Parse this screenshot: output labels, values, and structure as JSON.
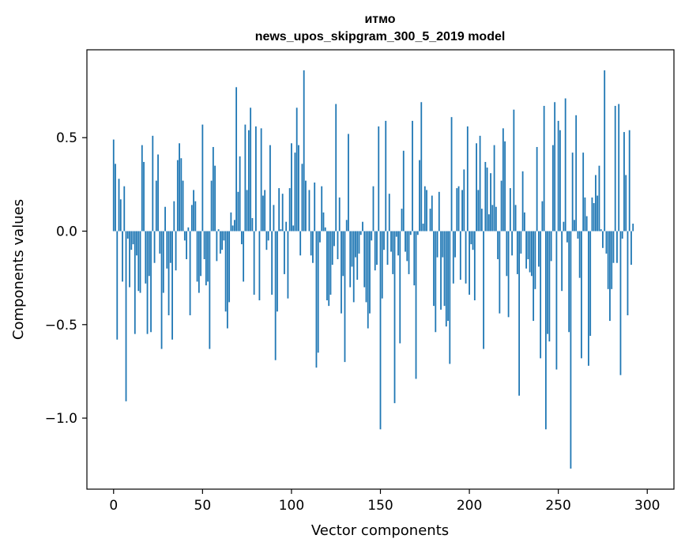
{
  "chart_data": {
    "type": "bar",
    "title": "итмо",
    "subtitle": "news_upos_skipgram_300_5_2019 model",
    "xlabel": "Vector components",
    "ylabel": "Components values",
    "xlim": [
      -15,
      315
    ],
    "ylim": [
      -1.38,
      0.97
    ],
    "x_ticks": [
      0,
      50,
      100,
      150,
      200,
      250,
      300
    ],
    "x_tick_labels": [
      "0",
      "50",
      "100",
      "150",
      "200",
      "250",
      "300"
    ],
    "y_ticks": [
      0.5,
      0.0,
      -0.5,
      -1.0
    ],
    "y_tick_labels": [
      "0.5",
      "0.0",
      "−0.5",
      "−1.0"
    ],
    "bar_color": "#1f77b4",
    "x_start": 0,
    "values": [
      0.49,
      0.36,
      -0.58,
      0.28,
      0.17,
      -0.27,
      0.24,
      -0.91,
      -0.04,
      -0.3,
      -0.1,
      -0.07,
      -0.55,
      -0.13,
      -0.32,
      -0.33,
      0.46,
      0.37,
      -0.28,
      -0.55,
      -0.24,
      -0.54,
      0.51,
      -0.17,
      0.27,
      0.41,
      -0.12,
      -0.63,
      -0.33,
      0.13,
      -0.2,
      -0.45,
      -0.17,
      -0.58,
      0.16,
      -0.21,
      0.38,
      0.47,
      0.39,
      0.27,
      -0.05,
      -0.15,
      0.02,
      -0.45,
      0.14,
      0.22,
      0.16,
      -0.27,
      -0.33,
      -0.24,
      0.57,
      -0.15,
      -0.29,
      -0.27,
      -0.63,
      0.27,
      0.45,
      0.35,
      -0.16,
      0.01,
      -0.12,
      -0.1,
      -0.05,
      -0.43,
      -0.52,
      -0.38,
      0.1,
      0.03,
      0.06,
      0.77,
      0.21,
      0.4,
      -0.07,
      -0.27,
      0.57,
      0.22,
      0.54,
      0.66,
      0.07,
      -0.34,
      0.56,
      0.0,
      -0.37,
      0.55,
      0.19,
      0.22,
      -0.1,
      -0.05,
      0.46,
      -0.34,
      0.14,
      -0.69,
      -0.43,
      0.23,
      0.01,
      0.2,
      -0.23,
      0.05,
      -0.36,
      0.23,
      0.47,
      0.03,
      0.42,
      0.66,
      0.46,
      -0.13,
      0.36,
      0.86,
      0.27,
      0.0,
      0.22,
      -0.13,
      -0.17,
      0.26,
      -0.73,
      -0.65,
      -0.06,
      0.24,
      0.1,
      0.02,
      -0.37,
      -0.4,
      -0.34,
      -0.18,
      -0.08,
      0.68,
      -0.15,
      0.18,
      -0.44,
      -0.24,
      -0.7,
      0.06,
      0.52,
      -0.3,
      -0.19,
      -0.38,
      -0.14,
      -0.26,
      -0.12,
      -0.02,
      0.05,
      -0.3,
      -0.38,
      -0.52,
      -0.44,
      -0.05,
      0.24,
      -0.21,
      -0.18,
      0.56,
      -1.06,
      -0.36,
      -0.1,
      0.59,
      -0.18,
      0.2,
      -0.11,
      -0.23,
      -0.92,
      -0.03,
      -0.13,
      -0.6,
      0.12,
      0.43,
      -0.11,
      -0.16,
      -0.23,
      -0.02,
      0.59,
      -0.29,
      -0.79,
      -0.02,
      0.38,
      0.69,
      0.04,
      0.24,
      0.22,
      0.0,
      0.12,
      0.19,
      -0.4,
      -0.54,
      -0.14,
      0.21,
      -0.42,
      -0.14,
      -0.4,
      -0.51,
      -0.48,
      -0.71,
      0.61,
      -0.28,
      -0.14,
      0.23,
      0.24,
      -0.26,
      0.22,
      0.33,
      -0.28,
      0.56,
      -0.34,
      -0.07,
      -0.1,
      -0.37,
      0.47,
      0.22,
      0.51,
      0.12,
      -0.63,
      0.37,
      0.34,
      0.09,
      0.31,
      0.14,
      0.46,
      0.13,
      -0.15,
      -0.44,
      0.27,
      0.55,
      0.48,
      -0.24,
      -0.46,
      0.23,
      -0.13,
      0.65,
      0.14,
      -0.23,
      -0.88,
      -0.12,
      0.32,
      0.1,
      -0.2,
      -0.15,
      -0.22,
      -0.24,
      -0.48,
      -0.31,
      0.45,
      -0.19,
      -0.68,
      0.16,
      0.67,
      -1.06,
      -0.55,
      -0.59,
      -0.16,
      0.46,
      0.69,
      -0.74,
      0.59,
      0.54,
      -0.32,
      0.05,
      0.71,
      -0.06,
      -0.54,
      -1.27,
      0.42,
      0.06,
      0.62,
      -0.04,
      -0.25,
      -0.68,
      0.42,
      0.18,
      0.08,
      -0.72,
      -0.56,
      0.18,
      0.15,
      0.3,
      0.19,
      0.35,
      0.01,
      -0.09,
      0.86,
      -0.12,
      -0.31,
      -0.48,
      -0.31,
      -0.17,
      0.67,
      -0.17,
      0.68,
      -0.77,
      -0.04,
      0.53,
      0.3,
      -0.45,
      0.54,
      -0.18,
      0.04
    ]
  }
}
